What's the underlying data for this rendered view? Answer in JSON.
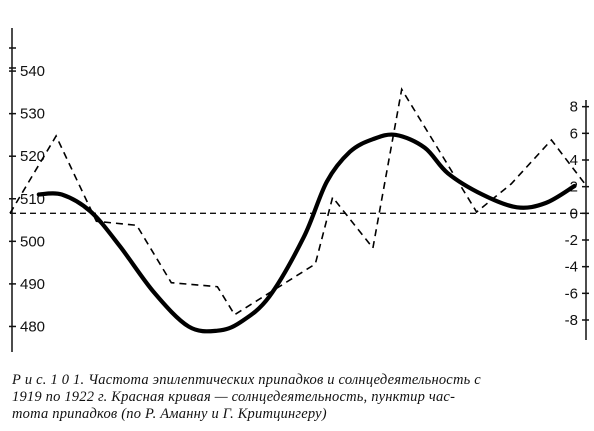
{
  "chart_data": {
    "type": "line",
    "left_axis": {
      "ylim": [
        474,
        552
      ],
      "ticks": [
        480,
        490,
        500,
        510,
        520,
        530,
        540
      ]
    },
    "right_axis": {
      "ylim": [
        -10.4,
        14.5
      ],
      "ticks": [
        -8,
        -6,
        -4,
        -2,
        0,
        2,
        4,
        6,
        8
      ]
    },
    "baseline": {
      "axis": "right",
      "value": 0
    },
    "series": [
      {
        "style": "solid-bold",
        "axis": "left",
        "color": "#000000",
        "x": [
          0.05,
          0.09,
          0.14,
          0.19,
          0.25,
          0.31,
          0.36,
          0.4,
          0.45,
          0.51,
          0.55,
          0.59,
          0.63,
          0.67,
          0.72,
          0.76,
          0.82,
          0.88,
          0.93,
          0.98
        ],
        "values": [
          511,
          511,
          507,
          499,
          488,
          480,
          479,
          481,
          487,
          501,
          514,
          521,
          524,
          525,
          522,
          516,
          511,
          508,
          509,
          513
        ]
      },
      {
        "style": "dashed",
        "axis": "right",
        "color": "#000000",
        "x": [
          0.0,
          0.08,
          0.15,
          0.22,
          0.28,
          0.36,
          0.39,
          0.53,
          0.56,
          0.63,
          0.68,
          0.81,
          0.87,
          0.94,
          1.0
        ],
        "values": [
          0,
          5.8,
          -0.6,
          -0.9,
          -5.2,
          -5.5,
          -7.6,
          -3.8,
          1.2,
          -2.6,
          9.3,
          0.1,
          2.2,
          5.5,
          2.1
        ]
      }
    ]
  },
  "caption": {
    "line1": "Р и с.  1 0 1.  Частота эпилептических припадков и солнцедеятельность с",
    "line2": "1919 по 1922 г. Красная кривая — солнцедеятельность, пунктир     час-",
    "line3": "тота припадков (по Р. Аманну и Г. Критцингеру)"
  }
}
